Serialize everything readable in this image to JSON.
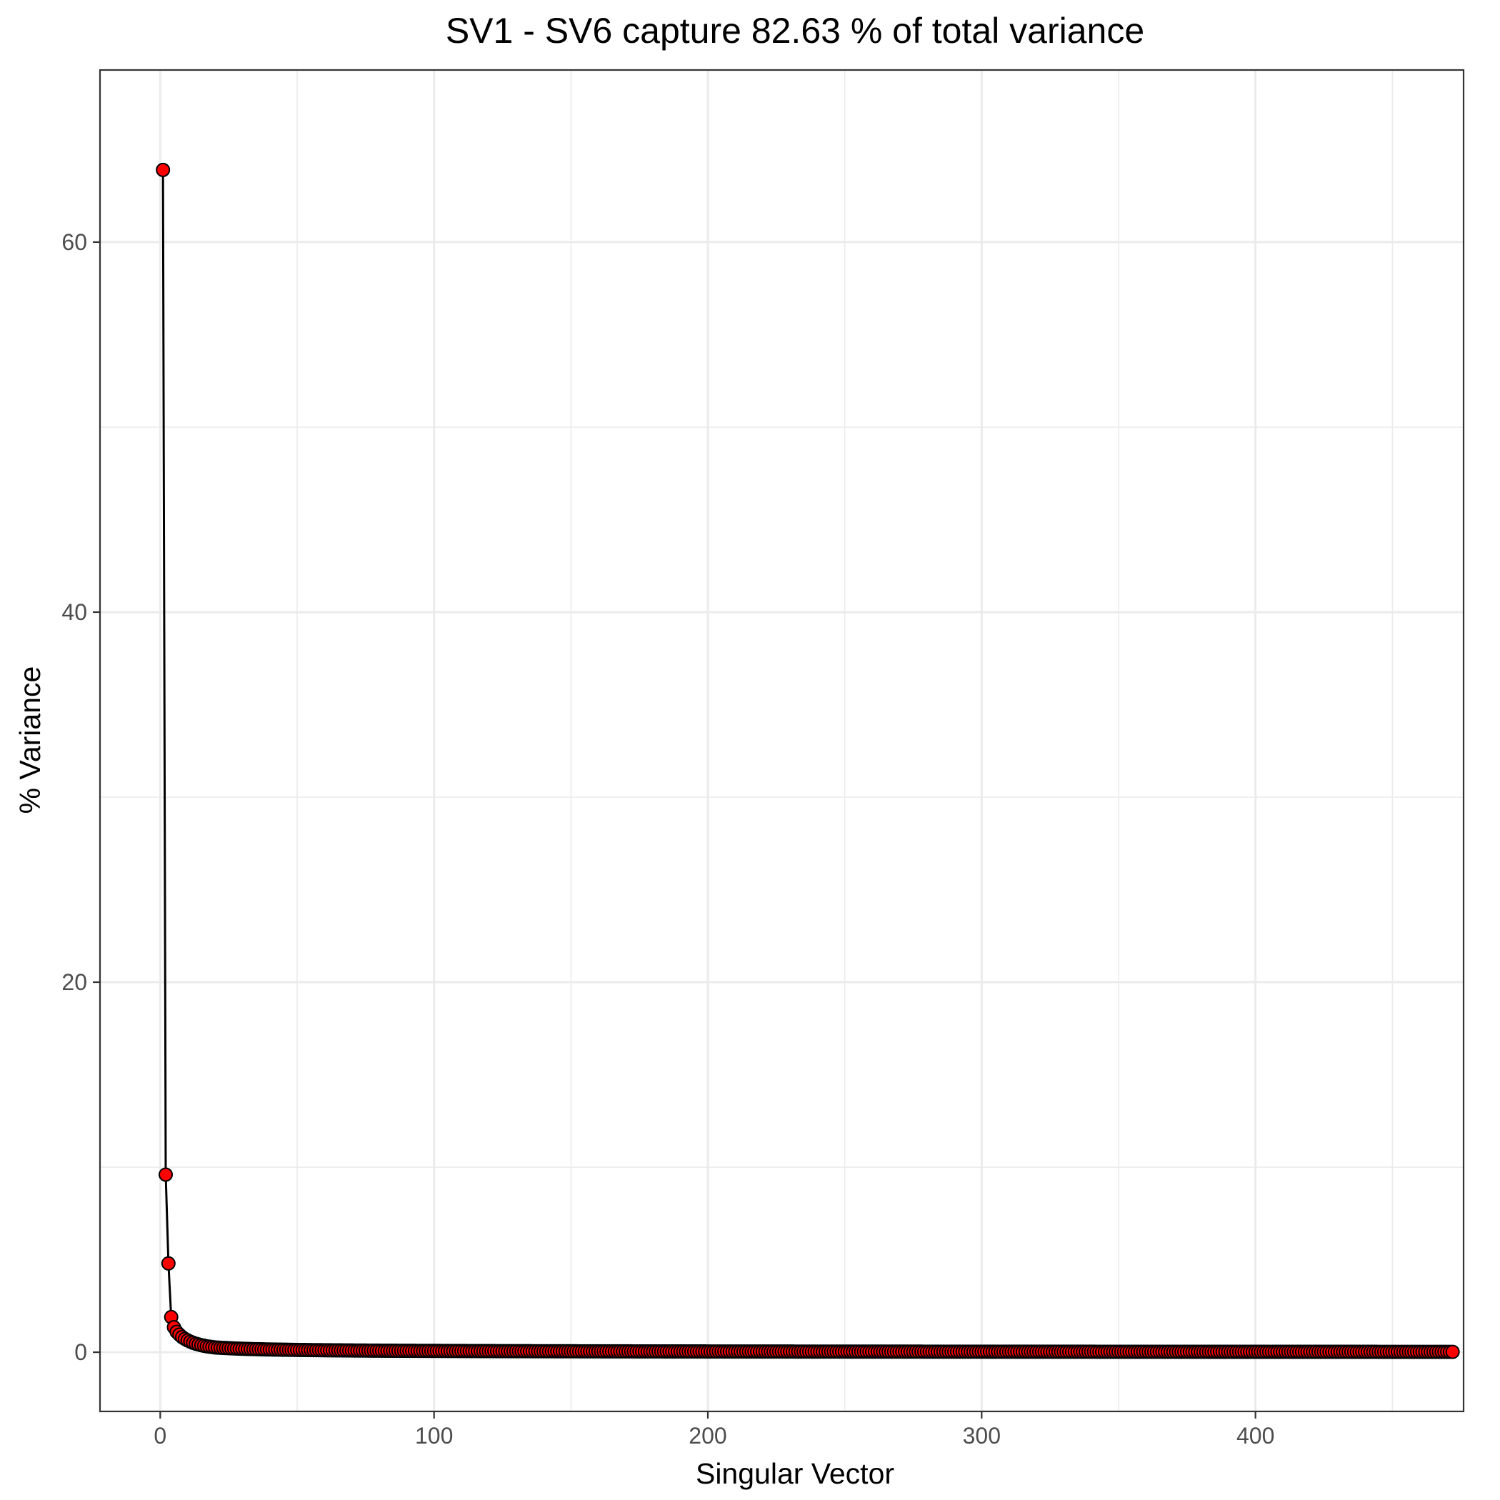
{
  "chart_data": {
    "type": "scatter",
    "title": "SV1 - SV6 capture 82.63 % of total variance",
    "xlabel": "Singular Vector",
    "ylabel": "% Variance",
    "xlim": [
      -22,
      476
    ],
    "ylim": [
      -3.2,
      69.3
    ],
    "xticks": [
      0,
      100,
      200,
      300,
      400
    ],
    "xtick_labels": [
      "0",
      "100",
      "200",
      "300",
      "400"
    ],
    "yticks": [
      0,
      20,
      40,
      60
    ],
    "ytick_labels": [
      "0",
      "20",
      "40",
      "60"
    ],
    "x_minor_grid": [
      50,
      150,
      250,
      350,
      450
    ],
    "y_minor_grid": [
      10,
      30,
      50
    ],
    "grid": true,
    "connected": true,
    "n_points": 472,
    "head_values": [
      63.9,
      9.6,
      4.8,
      1.9,
      1.35,
      1.1,
      0.95,
      0.82,
      0.72,
      0.64,
      0.57,
      0.51,
      0.46,
      0.42,
      0.38,
      0.35,
      0.32,
      0.3,
      0.28,
      0.26
    ],
    "tail_curve": {
      "from_x": 20,
      "value_at_from": 0.26,
      "value_at_end": 0.02
    },
    "marker_fill": "#ff0000",
    "marker_edge": "#000000",
    "line_color": "#000000"
  }
}
